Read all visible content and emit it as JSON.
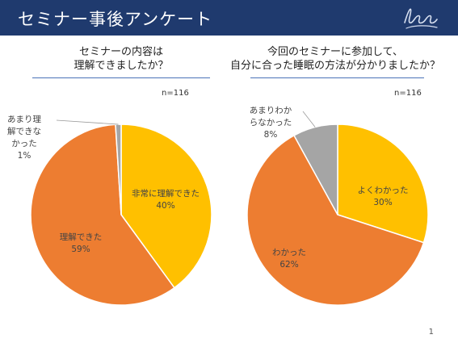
{
  "header": {
    "title": "セミナー事後アンケート"
  },
  "page_number": "1",
  "charts": [
    {
      "title_lines": [
        "セミナーの内容は",
        "理解できましたか？"
      ],
      "n": "n=116",
      "labels": [
        {
          "lines": [
            "非常に理解できた",
            "40%"
          ]
        },
        {
          "lines": [
            "理解できた",
            "59%"
          ]
        },
        {
          "lines": [
            "あまり理",
            "解できな",
            "かった",
            "1%"
          ]
        }
      ]
    },
    {
      "title_lines": [
        "今回のセミナーに参加して、",
        "自分に合った睡眠の方法が分かりましたか？"
      ],
      "n": "n=116",
      "labels": [
        {
          "lines": [
            "よくわかった",
            "30%"
          ]
        },
        {
          "lines": [
            "わかった",
            "62%"
          ]
        },
        {
          "lines": [
            "あまりわか",
            "らなかった",
            "8%"
          ]
        }
      ]
    }
  ],
  "chart_data": [
    {
      "type": "pie",
      "title": "セミナーの内容は理解できましたか？",
      "categories": [
        "非常に理解できた",
        "理解できた",
        "あまり理解できなかった"
      ],
      "values": [
        40,
        59,
        1
      ],
      "colors": [
        "#ffc000",
        "#ed7d31",
        "#a5a5a5"
      ]
    },
    {
      "type": "pie",
      "title": "今回のセミナーに参加して、自分に合った睡眠の方法が分かりましたか？",
      "categories": [
        "よくわかった",
        "わかった",
        "あまりわからなかった"
      ],
      "values": [
        30,
        62,
        8
      ],
      "colors": [
        "#ffc000",
        "#ed7d31",
        "#a5a5a5"
      ]
    }
  ]
}
